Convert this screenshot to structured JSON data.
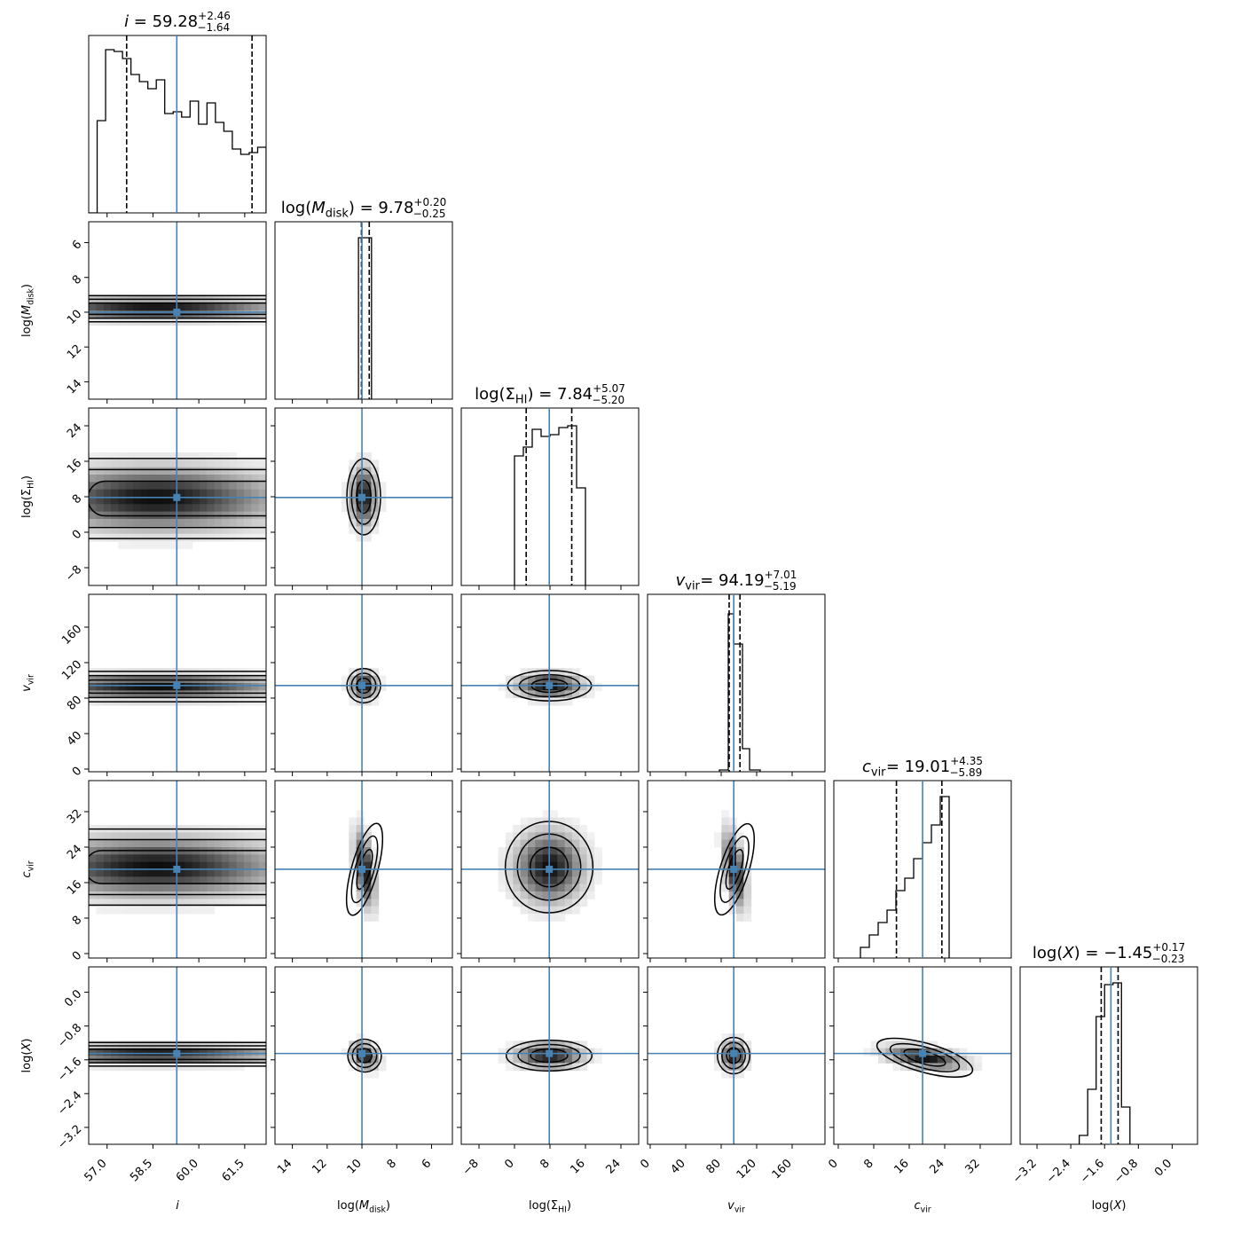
{
  "chart_data": {
    "type": "corner",
    "title": "",
    "truth_color": "#4682b4",
    "parameters": [
      {
        "key": "i",
        "label": "i",
        "title": {
          "name": "i",
          "median": "59.28",
          "plus": "+2.46",
          "minus": "−1.64"
        },
        "range": [
          56.4,
          62.2
        ],
        "ticks": [
          "57.0",
          "58.5",
          "60.0",
          "61.5"
        ],
        "tick_values": [
          57.0,
          58.5,
          60.0,
          61.5
        ],
        "median": 59.28,
        "q16": 57.64,
        "q84": 61.74,
        "truth": 59.28,
        "peak": 57.55,
        "hist_heights": [
          0.0,
          0.52,
          0.92,
          0.91,
          0.87,
          0.78,
          0.74,
          0.7,
          0.75,
          0.56,
          0.57,
          0.54,
          0.63,
          0.5,
          0.62,
          0.51,
          0.46,
          0.36,
          0.33,
          0.34,
          0.37
        ]
      },
      {
        "key": "log_mdisk",
        "label": "log(M_disk)",
        "title": {
          "name": "log(M_disk)",
          "median": "9.78",
          "plus": "+0.20",
          "minus": "−0.25"
        },
        "range": [
          15.0,
          4.8
        ],
        "ticks": [
          "14",
          "12",
          "10",
          "8",
          "6"
        ],
        "tick_values": [
          14,
          12,
          10,
          8,
          6
        ],
        "median": 9.78,
        "q16": 10.03,
        "q84": 9.58,
        "truth": 10.0,
        "peak": 9.8,
        "hist_edges": [
          10.2,
          9.8,
          9.45
        ],
        "hist_heights": [
          0.91,
          0.91
        ]
      },
      {
        "key": "log_sigma_hi",
        "label": "log(Σ_HI)",
        "title": {
          "name": "log(Σ_HI)",
          "median": "7.84",
          "plus": "+5.07",
          "minus": "−5.20"
        },
        "range": [
          -12.0,
          28.0
        ],
        "ticks": [
          "−8",
          "0",
          "8",
          "16",
          "24"
        ],
        "tick_values": [
          -8,
          0,
          8,
          16,
          24
        ],
        "median": 7.84,
        "q16": 2.64,
        "q84": 12.91,
        "truth": 7.84,
        "peak": 8.0,
        "hist_edges": [
          0,
          2,
          4,
          6,
          8,
          10,
          12,
          14,
          16
        ],
        "hist_heights": [
          0.73,
          0.78,
          0.88,
          0.84,
          0.85,
          0.89,
          0.9,
          0.55
        ]
      },
      {
        "key": "v_vir",
        "label": "v_vir",
        "title": {
          "name": "v_vir",
          "median": "94.19",
          "plus": "+7.01",
          "minus": "−5.19"
        },
        "range": [
          -3.0,
          197.0
        ],
        "ticks": [
          "0",
          "40",
          "80",
          "120",
          "160"
        ],
        "tick_values": [
          0,
          40,
          80,
          120,
          160
        ],
        "median": 94.19,
        "q16": 89.0,
        "q84": 101.2,
        "truth": 94.19,
        "peak": 94.0,
        "hist_edges": [
          78,
          88,
          94,
          104,
          112,
          124
        ],
        "hist_heights": [
          0.01,
          0.89,
          0.72,
          0.13,
          0.01
        ]
      },
      {
        "key": "c_vir",
        "label": "c_vir",
        "title": {
          "name": "c_vir",
          "median": "19.01",
          "plus": "+4.35",
          "minus": "−5.89"
        },
        "range": [
          -1.0,
          39.0
        ],
        "ticks": [
          "0",
          "8",
          "16",
          "24",
          "32"
        ],
        "tick_values": [
          0,
          8,
          16,
          24,
          32
        ],
        "median": 19.01,
        "q16": 13.12,
        "q84": 23.36,
        "truth": 19.01,
        "peak": 21.0,
        "hist_edges": [
          5,
          7,
          9,
          11,
          13,
          15,
          17,
          19,
          21,
          23,
          25
        ],
        "hist_heights": [
          0.06,
          0.13,
          0.2,
          0.27,
          0.38,
          0.45,
          0.56,
          0.65,
          0.75,
          0.91
        ]
      },
      {
        "key": "log_x",
        "label": "log(X)",
        "title": {
          "name": "log(X)",
          "median": "−1.45",
          "plus": "+0.17",
          "minus": "−0.23"
        },
        "range": [
          -3.6,
          0.6
        ],
        "ticks": [
          "−3.2",
          "−2.4",
          "−1.6",
          "−0.8",
          "0.0"
        ],
        "tick_values": [
          -3.2,
          -2.4,
          -1.6,
          -0.8,
          0.0
        ],
        "median": -1.45,
        "q16": -1.68,
        "q84": -1.28,
        "truth": -1.45,
        "peak": -1.45,
        "hist_edges": [
          -2.2,
          -2.0,
          -1.8,
          -1.6,
          -1.4,
          -1.2,
          -1.0
        ],
        "hist_heights": [
          0.05,
          0.31,
          0.72,
          0.9,
          0.91,
          0.21
        ]
      }
    ],
    "pair_shapes": {
      "0-1": {
        "sx": 2.5,
        "sy": 0.35,
        "mx": 58.6,
        "my": 9.8,
        "tail": true
      },
      "0-2": {
        "sx": 2.4,
        "sy": 4.2,
        "mx": 58.6,
        "my": 7.6,
        "tail": true
      },
      "0-3": {
        "sx": 2.5,
        "sy": 8.0,
        "mx": 58.6,
        "my": 93.0,
        "tail": true
      },
      "0-4": {
        "sx": 2.5,
        "sy": 4.0,
        "mx": 58.6,
        "my": 19.5,
        "tail": true
      },
      "0-5": {
        "sx": 2.5,
        "sy": 0.13,
        "mx": 58.6,
        "my": -1.47,
        "tail": true
      },
      "1-2": {
        "sx": 0.45,
        "sy": 4.0,
        "mx": 9.9,
        "my": 8.0
      },
      "1-3": {
        "sx": 0.45,
        "sy": 9.0,
        "mx": 9.9,
        "my": 94.0
      },
      "1-4": {
        "sx": 0.35,
        "sy": 5.0,
        "mx": 9.85,
        "my": 19.0,
        "rho": 0.45
      },
      "1-5": {
        "sx": 0.45,
        "sy": 0.18,
        "mx": 9.85,
        "my": -1.5,
        "rho": 0.3
      },
      "2-3": {
        "sx": 4.4,
        "sy": 8.0,
        "mx": 7.9,
        "my": 94.0
      },
      "2-4": {
        "sx": 4.6,
        "sy": 4.8,
        "mx": 7.8,
        "my": 19.5
      },
      "2-5": {
        "sx": 4.5,
        "sy": 0.17,
        "mx": 7.8,
        "my": -1.5
      },
      "3-4": {
        "sx": 7.5,
        "sy": 5.0,
        "mx": 95.0,
        "my": 19.0,
        "rho": -0.5
      },
      "3-5": {
        "sx": 8.5,
        "sy": 0.2,
        "mx": 94.0,
        "my": -1.5
      },
      "4-5": {
        "sx": 5.2,
        "sy": 0.16,
        "mx": 19.5,
        "my": -1.55,
        "rho": -0.45
      }
    }
  }
}
